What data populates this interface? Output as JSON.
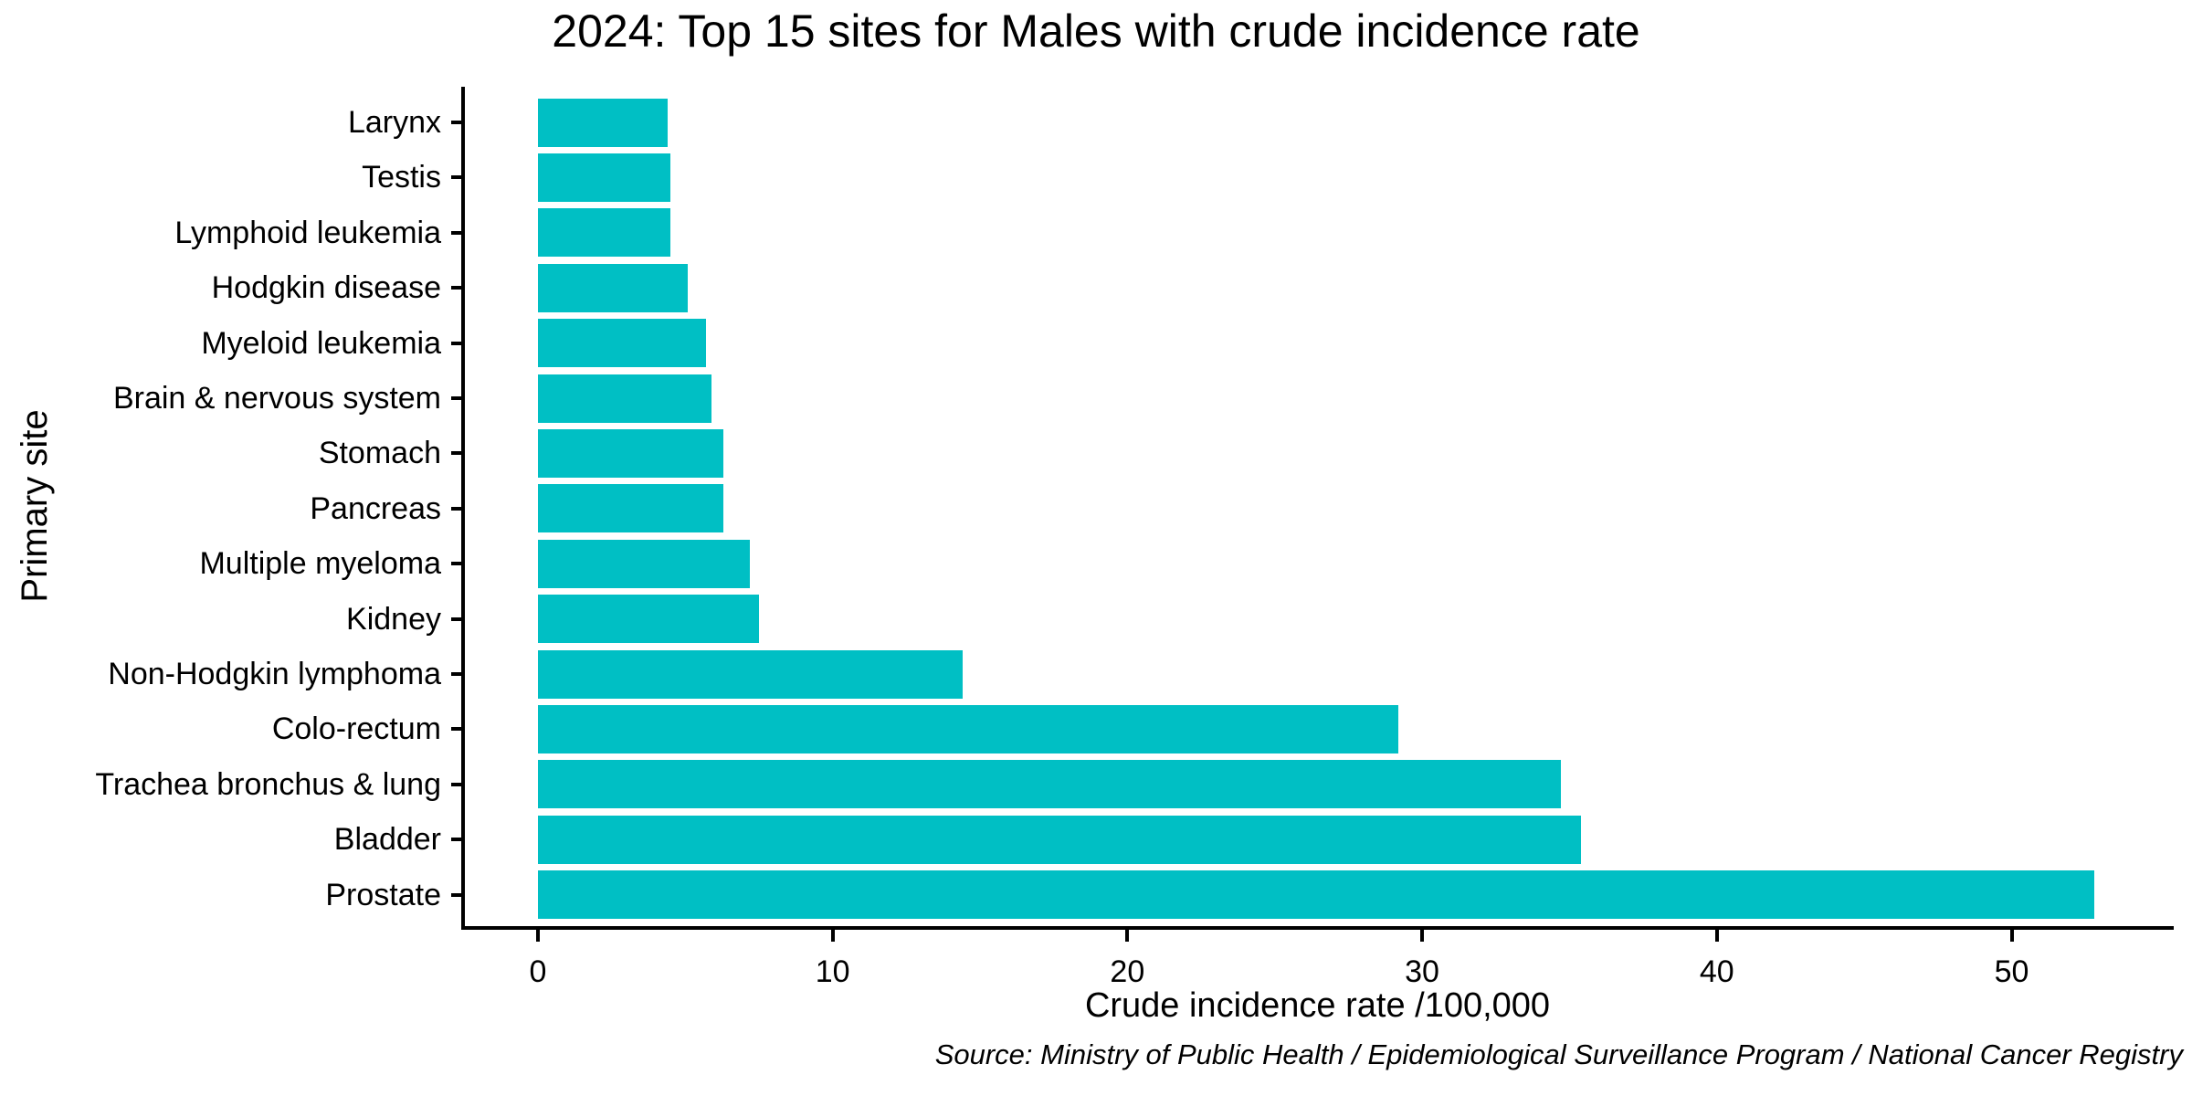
{
  "colors": {
    "bar": "#00BFC4",
    "axis": "#000000",
    "text": "#000000",
    "background": "#FFFFFF"
  },
  "chart_data": {
    "type": "bar",
    "orientation": "horizontal",
    "title": "2024: Top 15 sites for Males with crude incidence rate",
    "xlabel": "Crude incidence rate /100,000",
    "ylabel": "Primary site",
    "categories": [
      "Larynx",
      "Testis",
      "Lymphoid leukemia",
      "Hodgkin disease",
      "Myeloid leukemia",
      "Brain & nervous system",
      "Stomach",
      "Pancreas",
      "Multiple myeloma",
      "Kidney",
      "Non-Hodgkin lymphoma",
      "Colo-rectum",
      "Trachea bronchus & lung",
      "Bladder",
      "Prostate"
    ],
    "values": [
      4.4,
      4.5,
      4.5,
      5.1,
      5.7,
      5.9,
      6.3,
      6.3,
      7.2,
      7.5,
      14.4,
      29.2,
      34.7,
      35.4,
      52.8
    ],
    "bar_color": "#00BFC4",
    "xticks": [
      0,
      10,
      20,
      30,
      40,
      50
    ],
    "xlim": [
      -2.6,
      55.5
    ],
    "grid": false,
    "legend": "none",
    "source_note": "Source: Ministry of Public Health / Epidemiological Surveillance Program / National Cancer Registry"
  }
}
